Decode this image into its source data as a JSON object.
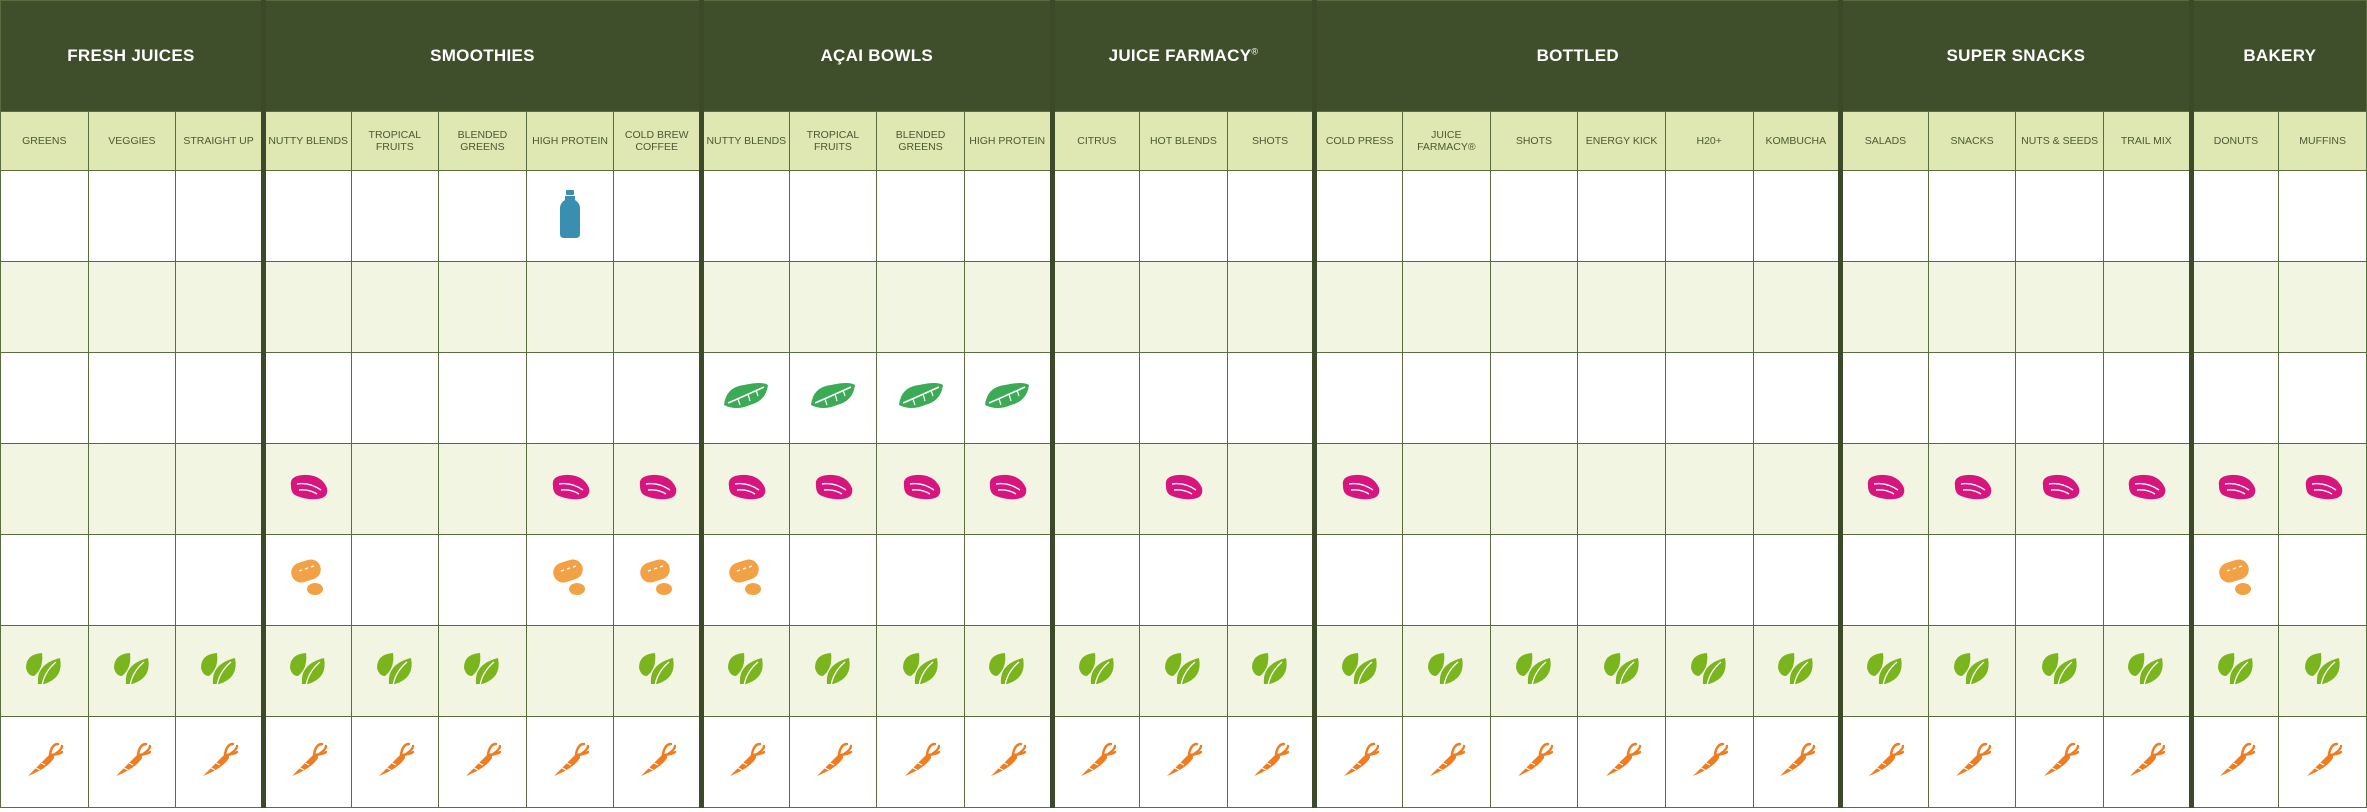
{
  "colors": {
    "header_bg": "#404f2b",
    "subheader_bg": "#dfe7b2",
    "alt_row_bg": "#f3f5e3",
    "icon_bottle": "#3a8fb0",
    "icon_leafy": "#3bab55",
    "icon_pink": "#d8157f",
    "icon_peanut": "#f2a244",
    "icon_leaf": "#7ab51d",
    "icon_carrot": "#f07c1f"
  },
  "icon_rows": [
    "bottle-icon",
    "leafy-icon",
    "pink-icon",
    "peanut-icon",
    "leaf-icon",
    "carrot-icon"
  ],
  "groups": [
    {
      "name": "FRESH JUICES",
      "sup": "",
      "columns": [
        "GREENS",
        "VEGGIES",
        "STRAIGHT UP"
      ]
    },
    {
      "name": "SMOOTHIES",
      "sup": "",
      "columns": [
        "NUTTY BLENDS",
        "TROPICAL FRUITS",
        "BLENDED GREENS",
        "HIGH PROTEIN",
        "COLD BREW COFFEE"
      ]
    },
    {
      "name": "AÇAI BOWLS",
      "sup": "",
      "columns": [
        "NUTTY BLENDS",
        "TROPICAL FRUITS",
        "BLENDED GREENS",
        "HIGH PROTEIN"
      ]
    },
    {
      "name": "JUICE FARMACY",
      "sup": "®",
      "columns": [
        "CITRUS",
        "HOT BLENDS",
        "SHOTS"
      ]
    },
    {
      "name": "BOTTLED",
      "sup": "",
      "columns": [
        "COLD PRESS",
        "JUICE FARMACY®",
        "SHOTS",
        "ENERGY KICK",
        "H20+",
        "KOMBUCHA"
      ]
    },
    {
      "name": "SUPER SNACKS",
      "sup": "",
      "columns": [
        "SALADS",
        "SNACKS",
        "NUTS & SEEDS",
        "TRAIL MIX"
      ]
    },
    {
      "name": "BAKERY",
      "sup": "",
      "columns": [
        "DONUTS",
        "MUFFINS"
      ]
    }
  ],
  "matrix": [
    [
      0,
      0,
      0,
      0,
      0,
      0,
      1,
      0,
      0,
      0,
      0,
      0,
      0,
      0,
      0,
      0,
      0,
      0,
      0,
      0,
      0,
      0,
      0,
      0,
      0,
      0,
      0
    ],
    [
      0,
      0,
      0,
      0,
      0,
      0,
      0,
      0,
      0,
      0,
      0,
      0,
      0,
      0,
      0,
      0,
      0,
      0,
      0,
      0,
      0,
      0,
      0,
      0,
      0,
      0,
      0
    ],
    [
      0,
      0,
      0,
      0,
      0,
      0,
      0,
      0,
      2,
      2,
      2,
      2,
      0,
      0,
      0,
      0,
      0,
      0,
      0,
      0,
      0,
      0,
      0,
      0,
      0,
      0,
      0
    ],
    [
      0,
      0,
      0,
      3,
      0,
      0,
      3,
      3,
      3,
      3,
      3,
      3,
      0,
      3,
      0,
      3,
      0,
      0,
      0,
      0,
      0,
      3,
      3,
      3,
      3,
      3,
      3
    ],
    [
      0,
      0,
      0,
      4,
      0,
      0,
      4,
      4,
      4,
      0,
      0,
      0,
      0,
      0,
      0,
      0,
      0,
      0,
      0,
      0,
      0,
      0,
      0,
      0,
      0,
      4,
      0
    ],
    [
      5,
      5,
      5,
      5,
      5,
      5,
      0,
      5,
      5,
      5,
      5,
      5,
      5,
      5,
      5,
      5,
      5,
      5,
      5,
      5,
      5,
      5,
      5,
      5,
      5,
      5,
      5
    ],
    [
      6,
      6,
      6,
      6,
      6,
      6,
      6,
      6,
      6,
      6,
      6,
      6,
      6,
      6,
      6,
      6,
      6,
      6,
      6,
      6,
      6,
      6,
      6,
      6,
      6,
      6,
      6
    ]
  ]
}
